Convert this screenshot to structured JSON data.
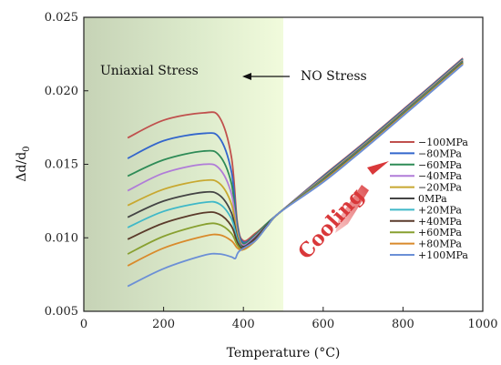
{
  "chart_data": {
    "type": "line",
    "xlabel": "Temperature (°C)",
    "ylabel": "Δd/d₀",
    "xlim": [
      0,
      1000
    ],
    "ylim": [
      0.005,
      0.025
    ],
    "xticks": [
      "0",
      "200",
      "400",
      "600",
      "800",
      "1000"
    ],
    "yticks": [
      "0.005",
      "0.010",
      "0.015",
      "0.020",
      "0.025"
    ],
    "grid": false,
    "legend_position": "right",
    "shaded_region": {
      "from": 0,
      "to": 500,
      "label": "Uniaxial Stress"
    },
    "annotations": {
      "no_stress": "NO Stress",
      "cooling": "Cooling"
    },
    "shared_tail": {
      "x": [
        490,
        600,
        700,
        800,
        950
      ],
      "y": [
        0.0117,
        0.014,
        0.0162,
        0.0185,
        0.022
      ]
    },
    "series": [
      {
        "name": "−100MPa",
        "color": "#c0504d",
        "x": [
          110,
          200,
          300,
          340,
          370,
          385,
          400,
          430,
          460,
          490
        ],
        "y": [
          0.0168,
          0.018,
          0.0185,
          0.0182,
          0.0155,
          0.011,
          0.0098,
          0.0103,
          0.011,
          0.0117
        ]
      },
      {
        "name": "−80MPa",
        "color": "#3366cc",
        "x": [
          110,
          200,
          300,
          340,
          370,
          385,
          400,
          430,
          460,
          490
        ],
        "y": [
          0.0154,
          0.0166,
          0.0171,
          0.0168,
          0.0145,
          0.0108,
          0.0097,
          0.0102,
          0.011,
          0.0117
        ]
      },
      {
        "name": "−60MPa",
        "color": "#2e8b57",
        "x": [
          110,
          200,
          300,
          340,
          370,
          385,
          400,
          430,
          460,
          490
        ],
        "y": [
          0.0142,
          0.0153,
          0.0159,
          0.0156,
          0.0137,
          0.0106,
          0.0096,
          0.0102,
          0.011,
          0.0117
        ]
      },
      {
        "name": "−40MPa",
        "color": "#b07cd8",
        "x": [
          110,
          200,
          300,
          340,
          370,
          385,
          400,
          430,
          460,
          490
        ],
        "y": [
          0.0132,
          0.0144,
          0.015,
          0.0147,
          0.013,
          0.0104,
          0.0095,
          0.0101,
          0.0109,
          0.0117
        ]
      },
      {
        "name": "−20MPa",
        "color": "#c8a830",
        "x": [
          110,
          200,
          300,
          340,
          370,
          385,
          400,
          430,
          460,
          490
        ],
        "y": [
          0.0122,
          0.0133,
          0.0139,
          0.0137,
          0.0123,
          0.0102,
          0.0094,
          0.01,
          0.0109,
          0.0117
        ]
      },
      {
        "name": "0MPa",
        "color": "#444444",
        "x": [
          110,
          200,
          300,
          340,
          370,
          385,
          400,
          430,
          460,
          490
        ],
        "y": [
          0.0114,
          0.0125,
          0.0131,
          0.0129,
          0.0117,
          0.01,
          0.0094,
          0.01,
          0.0109,
          0.0117
        ]
      },
      {
        "name": "+20MPa",
        "color": "#3fb8c8",
        "x": [
          110,
          200,
          300,
          340,
          370,
          385,
          400,
          430,
          460,
          490
        ],
        "y": [
          0.0107,
          0.0118,
          0.0124,
          0.0123,
          0.0113,
          0.0099,
          0.0093,
          0.0099,
          0.0108,
          0.0117
        ]
      },
      {
        "name": "+40MPa",
        "color": "#5a3a2a",
        "x": [
          110,
          200,
          300,
          340,
          370,
          385,
          400,
          430,
          460,
          490
        ],
        "y": [
          0.0099,
          0.011,
          0.0117,
          0.0116,
          0.0108,
          0.0097,
          0.0093,
          0.0099,
          0.0108,
          0.0117
        ]
      },
      {
        "name": "+60MPa",
        "color": "#88a030",
        "x": [
          110,
          200,
          300,
          340,
          370,
          385,
          400,
          430,
          460,
          490
        ],
        "y": [
          0.0089,
          0.0101,
          0.0109,
          0.0109,
          0.0103,
          0.0095,
          0.0092,
          0.0098,
          0.0108,
          0.0117
        ]
      },
      {
        "name": "+80MPa",
        "color": "#d98a2b",
        "x": [
          110,
          200,
          300,
          340,
          370,
          385,
          400,
          430,
          460,
          490
        ],
        "y": [
          0.0081,
          0.0093,
          0.0101,
          0.0102,
          0.0098,
          0.0093,
          0.0092,
          0.0098,
          0.0108,
          0.0117
        ]
      },
      {
        "name": "+100MPa",
        "color": "#6b8fd6",
        "x": [
          110,
          200,
          300,
          340,
          370,
          380,
          390,
          430,
          460,
          490
        ],
        "y": [
          0.0067,
          0.0079,
          0.0088,
          0.0089,
          0.0087,
          0.0086,
          0.0091,
          0.0098,
          0.0108,
          0.0117
        ]
      }
    ]
  }
}
